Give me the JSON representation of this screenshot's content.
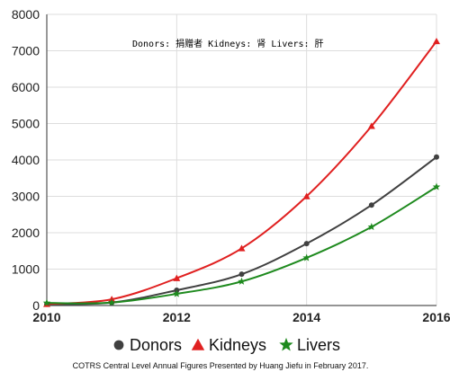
{
  "chart_data": {
    "type": "line",
    "x": [
      2010,
      2011,
      2012,
      2013,
      2014,
      2015,
      2016
    ],
    "x_ticks": [
      "2010",
      "2012",
      "2014",
      "2016"
    ],
    "y_ticks": [
      "0",
      "1000",
      "2000",
      "3000",
      "4000",
      "5000",
      "6000",
      "7000",
      "8000"
    ],
    "xlim": [
      2010,
      2016
    ],
    "ylim": [
      0,
      8000
    ],
    "grid": true,
    "legend_position": "bottom",
    "annotation": "Donors: 捐赠者  Kidneys: 肾  Livers: 肝",
    "caption": "COTRS Central Level Annual Figures Presented by Huang Jiefu in February 2017.",
    "series": [
      {
        "name": "Donors",
        "marker": "circle",
        "color": "#404040",
        "values": [
          34,
          80,
          420,
          860,
          1700,
          2760,
          4080
        ]
      },
      {
        "name": "Kidneys",
        "marker": "triangle",
        "color": "#e02020",
        "values": [
          40,
          170,
          750,
          1570,
          3000,
          4930,
          7260
        ]
      },
      {
        "name": "Livers",
        "marker": "star",
        "color": "#1e8a1e",
        "values": [
          70,
          80,
          320,
          660,
          1310,
          2160,
          3260
        ]
      }
    ]
  }
}
